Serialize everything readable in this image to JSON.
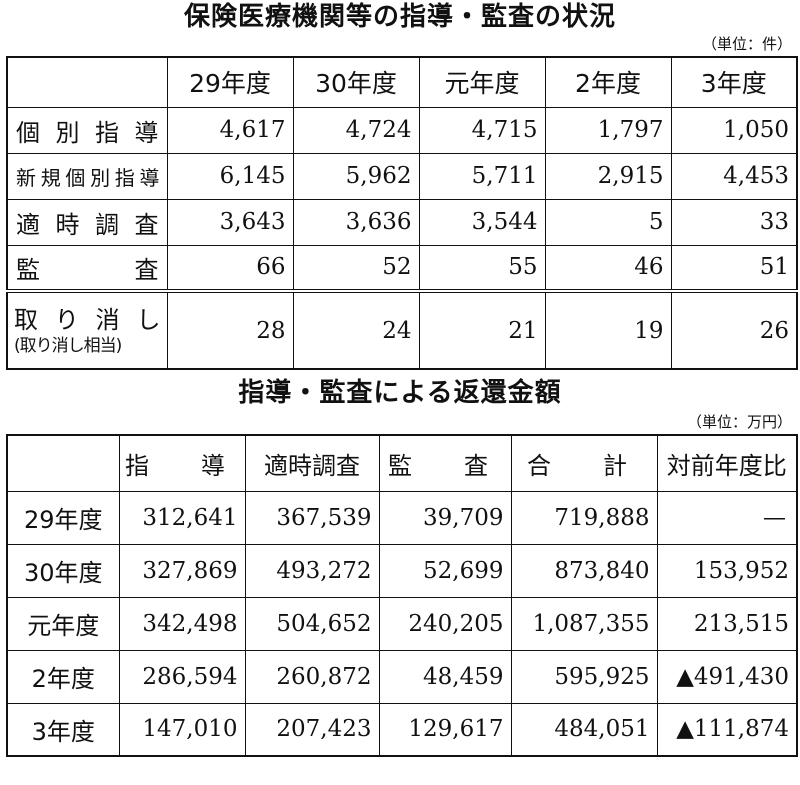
{
  "table1": {
    "title": "保険医療機関等の指導・監査の状況",
    "unit": "（単位：件）",
    "columns": [
      "29年度",
      "30年度",
      "元年度",
      "2年度",
      "3年度"
    ],
    "rows": [
      {
        "label": "個別指導",
        "values": [
          "4,617",
          "4,724",
          "4,715",
          "1,797",
          "1,050"
        ]
      },
      {
        "label": "新規個別指導",
        "values": [
          "6,145",
          "5,962",
          "5,711",
          "2,915",
          "4,453"
        ]
      },
      {
        "label": "適時調査",
        "values": [
          "3,643",
          "3,636",
          "3,544",
          "5",
          "33"
        ]
      },
      {
        "label": "監　　査",
        "values": [
          "66",
          "52",
          "55",
          "46",
          "51"
        ]
      },
      {
        "label": "取り消し",
        "sublabel": "(取り消し相当)",
        "values": [
          "28",
          "24",
          "21",
          "19",
          "26"
        ]
      }
    ]
  },
  "table2": {
    "title": "指導・監査による返還金額",
    "unit": "（単位：万円）",
    "columns": [
      "指　導",
      "適時調査",
      "監　査",
      "合　計",
      "対前年度比"
    ],
    "rows": [
      {
        "label": "29年度",
        "values": [
          "312,641",
          "367,539",
          "39,709",
          "719,888",
          "—"
        ]
      },
      {
        "label": "30年度",
        "values": [
          "327,869",
          "493,272",
          "52,699",
          "873,840",
          "153,952"
        ]
      },
      {
        "label": "元年度",
        "values": [
          "342,498",
          "504,652",
          "240,205",
          "1,087,355",
          "213,515"
        ]
      },
      {
        "label": "2年度",
        "values": [
          "286,594",
          "260,872",
          "48,459",
          "595,925",
          "▲491,430"
        ]
      },
      {
        "label": "3年度",
        "values": [
          "147,010",
          "207,423",
          "129,617",
          "484,051",
          "▲111,874"
        ]
      }
    ]
  }
}
